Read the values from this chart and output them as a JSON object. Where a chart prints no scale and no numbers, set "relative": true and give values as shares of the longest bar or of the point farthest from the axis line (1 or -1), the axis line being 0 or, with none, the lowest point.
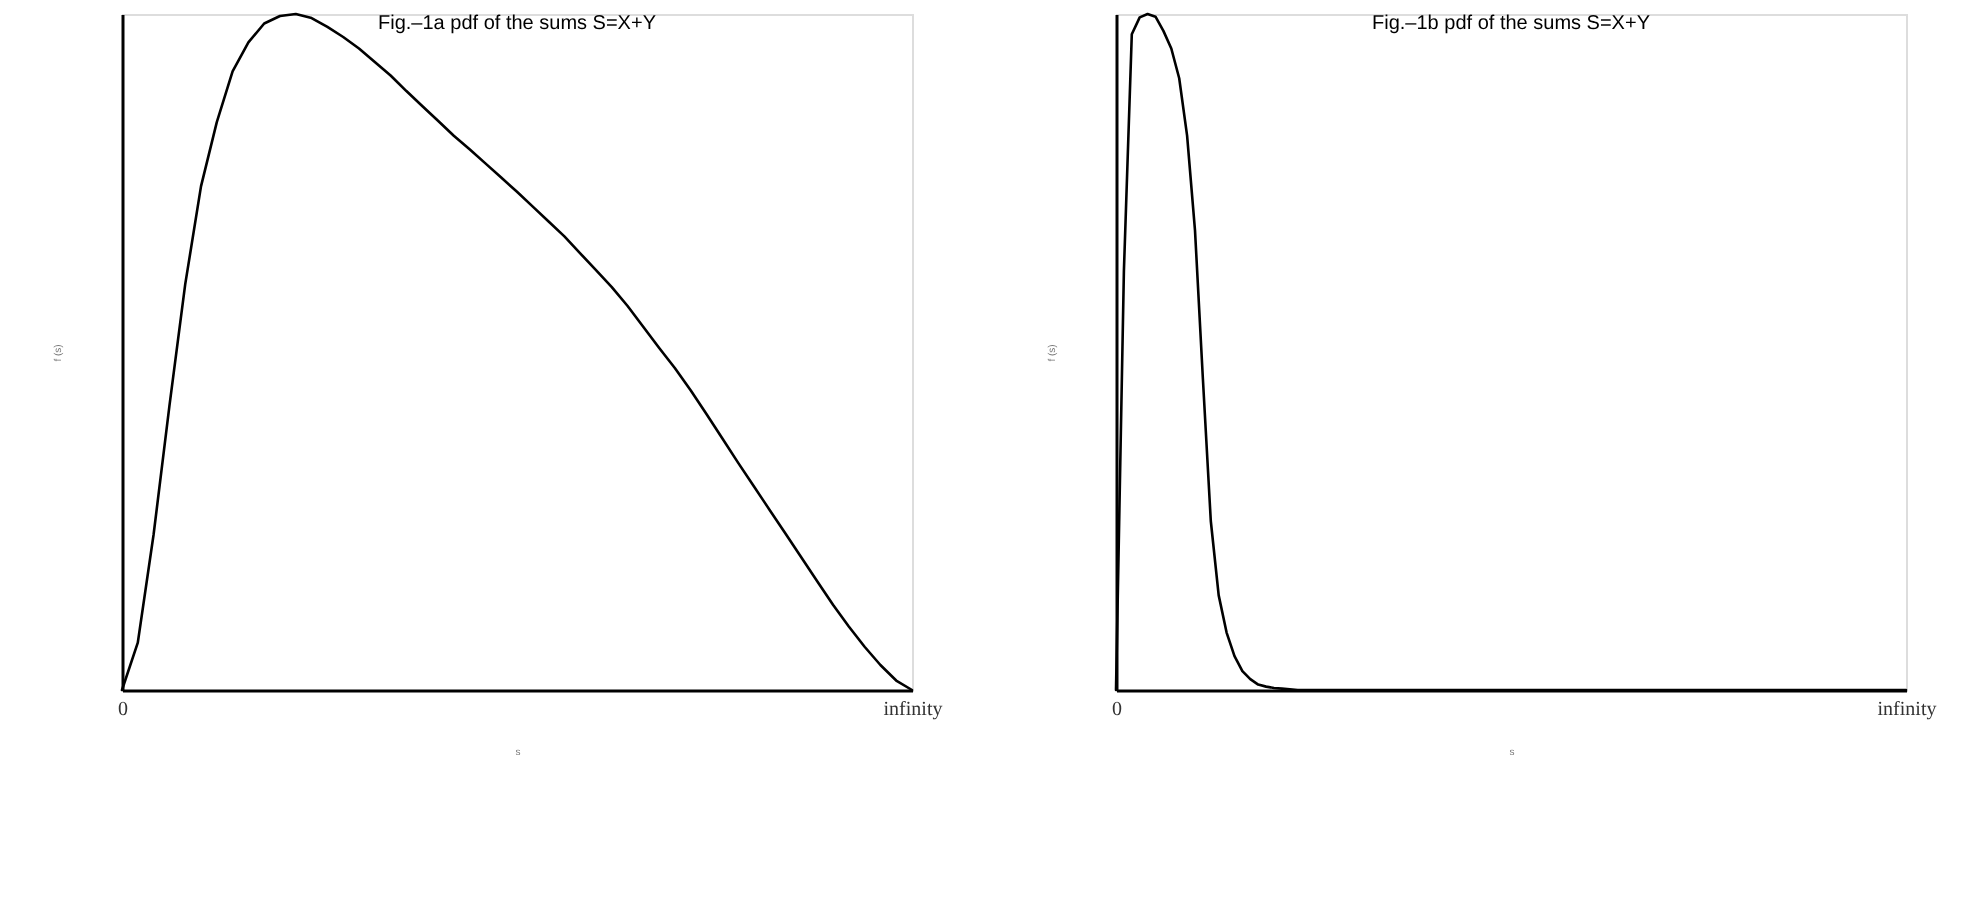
{
  "chart_data": [
    {
      "type": "line",
      "title": "Fig.–1a pdf of the sums S=X+Y",
      "xlabel": "s",
      "ylabel": "f (s)",
      "relative": true,
      "line_style": "solid",
      "categories": [
        "0",
        null,
        null,
        null,
        null,
        null,
        null,
        null,
        null,
        null,
        null,
        null,
        null,
        null,
        null,
        null,
        null,
        null,
        null,
        null,
        null,
        null,
        null,
        null,
        null,
        null,
        null,
        null,
        null,
        null,
        null,
        null,
        null,
        null,
        null,
        null,
        null,
        null,
        null,
        null,
        null,
        null,
        null,
        null,
        null,
        null,
        null,
        null,
        null,
        null,
        "infinity"
      ],
      "series": [
        {
          "color": "#000000",
          "values": [
            0,
            0.07,
            0.23,
            0.42,
            0.6,
            0.745,
            0.84,
            0.915,
            0.958,
            0.986,
            0.997,
            1.0,
            0.994,
            0.981,
            0.966,
            0.949,
            0.929,
            0.909,
            0.886,
            0.864,
            0.842,
            0.82,
            0.8,
            0.779,
            0.758,
            0.737,
            0.715,
            0.693,
            0.671,
            0.646,
            0.621,
            0.596,
            0.568,
            0.537,
            0.506,
            0.476,
            0.443,
            0.408,
            0.372,
            0.336,
            0.301,
            0.266,
            0.231,
            0.196,
            0.161,
            0.126,
            0.094,
            0.064,
            0.037,
            0.014,
            0
          ]
        }
      ]
    },
    {
      "type": "line",
      "title": "Fig.–1b pdf of the sums S=X+Y",
      "xlabel": "s",
      "ylabel": "f (s)",
      "relative": true,
      "line_style": "solid",
      "categories": [
        "0",
        null,
        null,
        null,
        null,
        null,
        null,
        null,
        null,
        null,
        null,
        null,
        null,
        null,
        null,
        null,
        null,
        null,
        null,
        null,
        null,
        null,
        null,
        null,
        null,
        null,
        null,
        null,
        null,
        null,
        null,
        null,
        null,
        null,
        null,
        null,
        null,
        null,
        null,
        null,
        null,
        null,
        null,
        null,
        null,
        null,
        null,
        null,
        null,
        null,
        null,
        null,
        null,
        null,
        null,
        null,
        null,
        null,
        null,
        null,
        null,
        null,
        null,
        null,
        null,
        null,
        null,
        null,
        null,
        null,
        null,
        null,
        null,
        null,
        null,
        null,
        null,
        null,
        null,
        null,
        null,
        null,
        null,
        null,
        null,
        null,
        null,
        null,
        null,
        null,
        null,
        null,
        null,
        null,
        null,
        null,
        null,
        null,
        null,
        null,
        "infinity"
      ],
      "series": [
        {
          "color": "#000000",
          "values": [
            0,
            0.62,
            0.97,
            0.995,
            1.0,
            0.996,
            0.975,
            0.949,
            0.905,
            0.82,
            0.68,
            0.46,
            0.25,
            0.14,
            0.085,
            0.05,
            0.028,
            0.016,
            0.008,
            0.005,
            0.003,
            0.002,
            0.001,
            0,
            0,
            0,
            0,
            0,
            0,
            0,
            0,
            0,
            0,
            0,
            0,
            0,
            0,
            0,
            0,
            0,
            0,
            0,
            0,
            0,
            0,
            0,
            0,
            0,
            0,
            0,
            0,
            0,
            0,
            0,
            0,
            0,
            0,
            0,
            0,
            0,
            0,
            0,
            0,
            0,
            0,
            0,
            0,
            0,
            0,
            0,
            0,
            0,
            0,
            0,
            0,
            0,
            0,
            0,
            0,
            0,
            0,
            0,
            0,
            0,
            0,
            0,
            0,
            0,
            0,
            0,
            0,
            0,
            0,
            0,
            0,
            0,
            0,
            0,
            0,
            0,
            0
          ]
        }
      ]
    }
  ]
}
